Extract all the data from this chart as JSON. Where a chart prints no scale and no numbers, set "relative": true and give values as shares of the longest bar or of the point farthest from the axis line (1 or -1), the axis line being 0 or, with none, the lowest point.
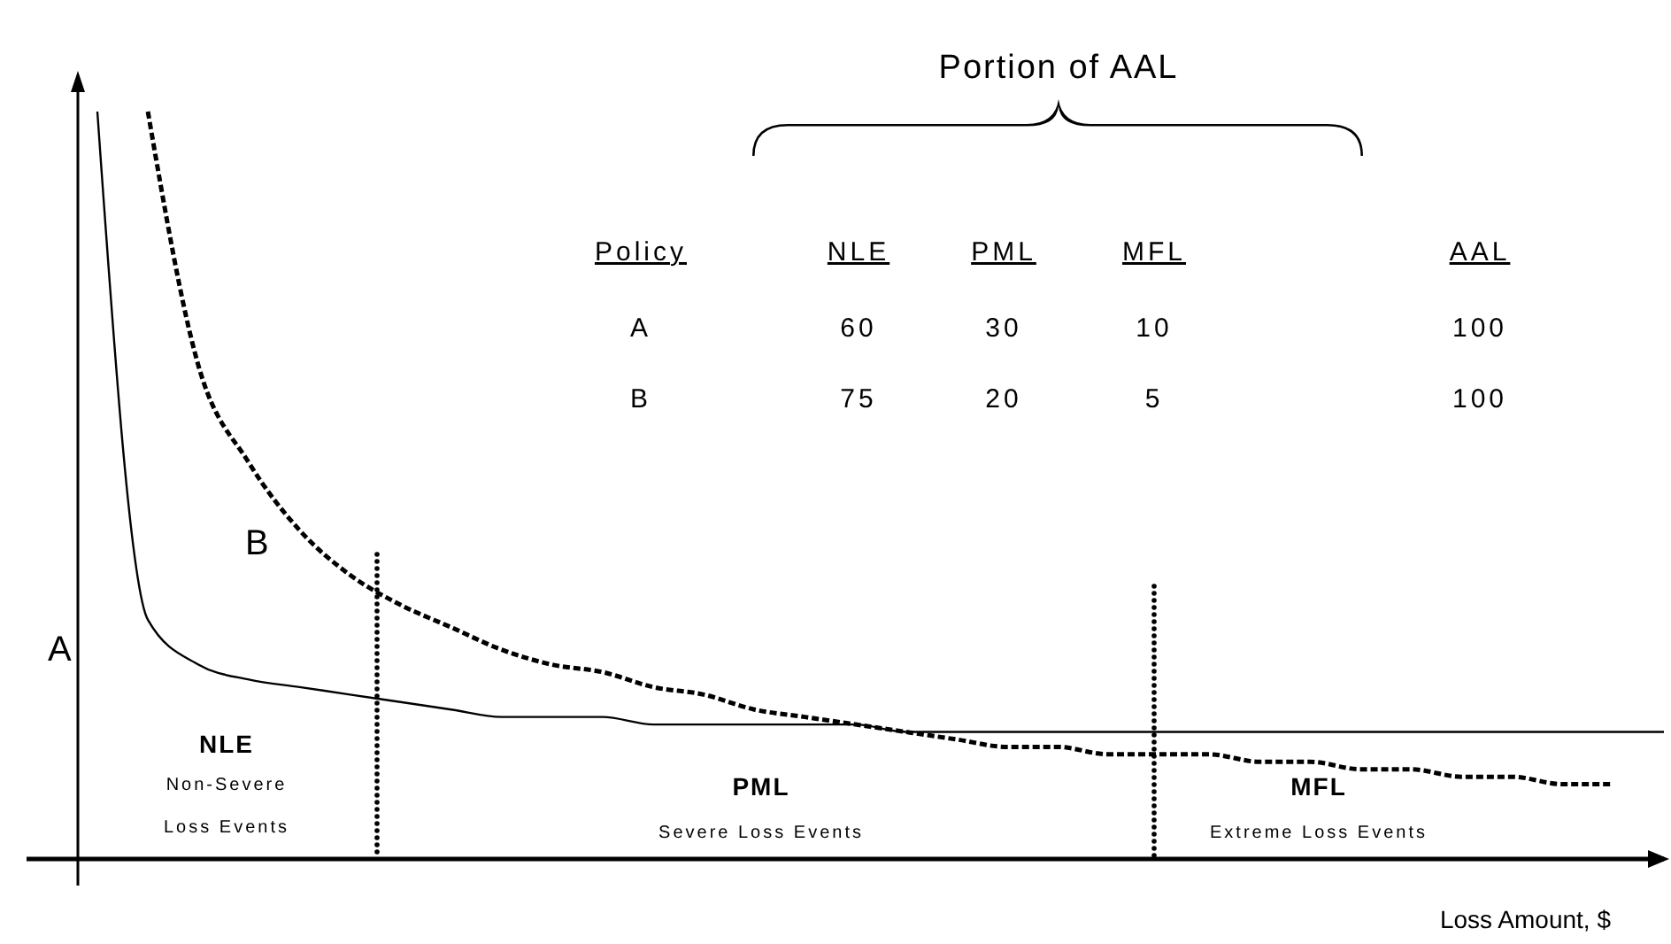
{
  "chart_data": {
    "type": "line",
    "relative": true,
    "xlabel": "Loss Amount, $",
    "legend": false,
    "categories": [
      null,
      null,
      null,
      null,
      null,
      null,
      null,
      null,
      null,
      null,
      null,
      null,
      null,
      null,
      null,
      null,
      null,
      null,
      null,
      null,
      null,
      null,
      null,
      null,
      null,
      null,
      null,
      null,
      null,
      null,
      null,
      null
    ],
    "series": [
      {
        "name": "A",
        "color": "#000000",
        "line_style": "solid",
        "values": [
          1,
          0.32,
          0.26,
          0.24,
          0.23,
          0.22,
          0.21,
          0.2,
          0.19,
          0.19,
          0.19,
          0.18,
          0.18,
          0.18,
          0.18,
          0.18,
          0.17,
          0.17,
          0.17,
          0.17,
          0.17,
          0.17,
          0.17,
          0.17,
          0.17,
          0.17,
          0.17,
          0.17,
          0.17,
          0.17,
          0.17,
          0.17
        ]
      },
      {
        "name": "B",
        "color": "#000000",
        "line_style": "dashed",
        "values": [
          null,
          1,
          0.66,
          0.53,
          0.44,
          0.38,
          0.34,
          0.31,
          0.28,
          0.26,
          0.25,
          0.23,
          0.22,
          0.2,
          0.19,
          0.18,
          0.17,
          0.16,
          0.15,
          0.15,
          0.14,
          0.14,
          0.14,
          0.13,
          0.13,
          0.12,
          0.12,
          0.11,
          0.11,
          0.1,
          0.1,
          null
        ]
      }
    ],
    "annotations": [
      "NLE",
      "Non-Severe",
      "Loss Events",
      "PML",
      "Severe Loss Events",
      "MFL",
      "Extreme Loss Events",
      "Portion of AAL",
      "Policy",
      "NLE",
      "PML",
      "MFL",
      "AAL",
      "A",
      "60",
      "30",
      "10",
      "100",
      "B",
      "75",
      "20",
      "5",
      "100"
    ]
  }
}
